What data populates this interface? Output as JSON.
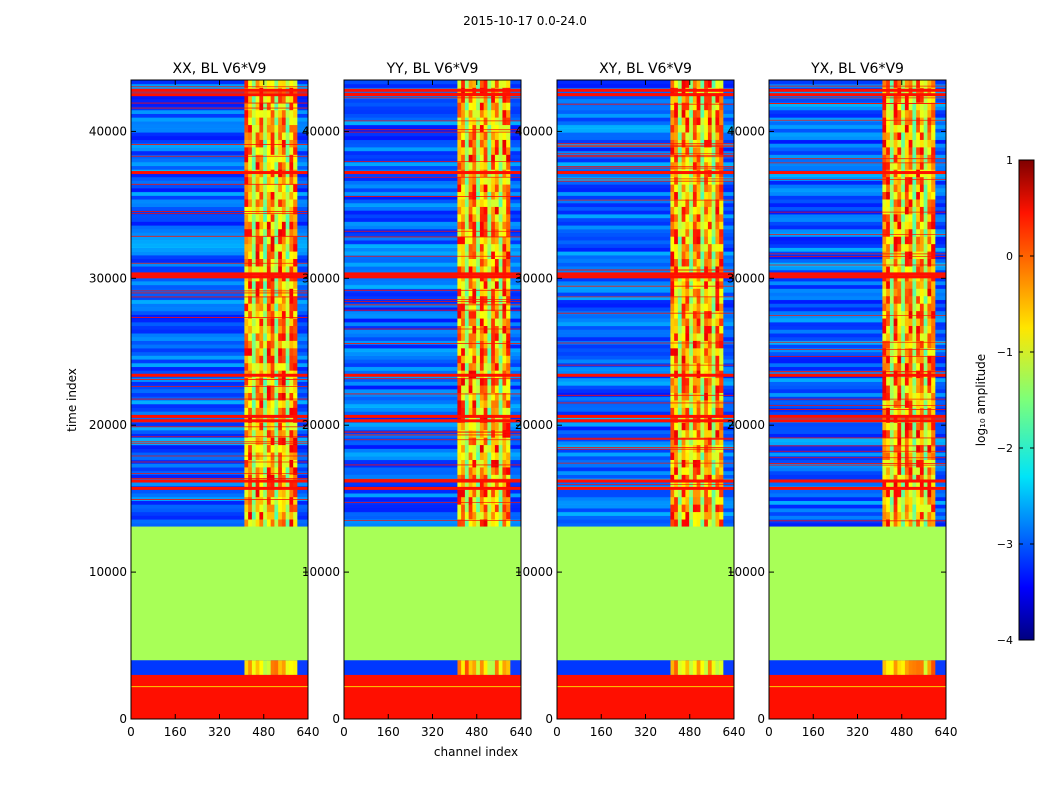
{
  "figure": {
    "suptitle": "2015-10-17 0.0-24.0"
  },
  "chart_data": {
    "type": "heatmap",
    "colormap": "jet",
    "xlabel": "channel index",
    "ylabel": "time index",
    "xlim": [
      0,
      640
    ],
    "ylim": [
      0,
      43500
    ],
    "xticks": [
      0,
      160,
      320,
      480,
      640
    ],
    "xtick_labels": [
      "0",
      "160",
      "320",
      "480",
      "640"
    ],
    "yticks": [
      0,
      10000,
      20000,
      30000,
      40000
    ],
    "ytick_labels": [
      "0",
      "10000",
      "20000",
      "30000",
      "40000"
    ],
    "panels": [
      {
        "title": "XX, BL V6*V9",
        "vmin_log": -4,
        "vmax_log": 1
      },
      {
        "title": "YY, BL V6*V9",
        "vmin_log": -4,
        "vmax_log": 1
      },
      {
        "title": "XY, BL V6*V9",
        "vmin_log": -4,
        "vmax_log": 1
      },
      {
        "title": "YX, BL V6*V9",
        "vmin_log": -4,
        "vmax_log": 1
      }
    ],
    "features": {
      "bright_channel_band": [
        410,
        600
      ],
      "flat_time_block": {
        "range": [
          4000,
          13100
        ],
        "log_amplitude": -1.3
      },
      "orange_time_block": {
        "range": [
          0,
          3000
        ],
        "log_amplitude": 0.3
      },
      "dense_flag_rows": [
        15700,
        16200,
        20300,
        20600,
        23400,
        30100,
        30300,
        37200,
        42500,
        42800
      ]
    },
    "colorbar": {
      "label": "log₁₀ amplitude",
      "range": [
        -4,
        1
      ],
      "ticks": [
        1,
        0,
        -1,
        -2,
        -3,
        -4
      ],
      "tick_labels": [
        "1",
        "0",
        "−1",
        "−2",
        "−3",
        "−4"
      ]
    }
  }
}
